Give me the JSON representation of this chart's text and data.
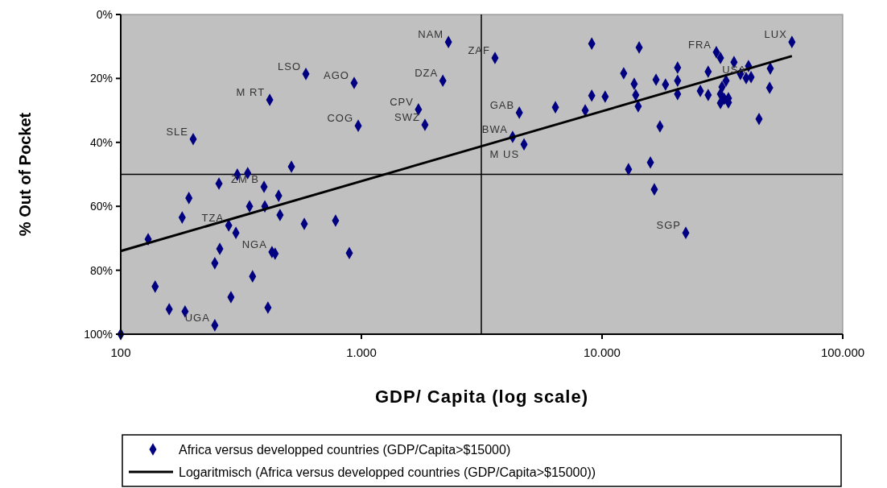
{
  "chart_data": {
    "type": "scatter",
    "xlabel": "GDP/ Capita (log scale)",
    "ylabel": "% Out of Pocket",
    "log": "x",
    "grid": false,
    "legend": "bottom",
    "marker": "diamond",
    "xlim": [
      100,
      100000
    ],
    "xticks": [
      100,
      {
        "value": 1000,
        "label": "1.000"
      },
      {
        "value": 10000,
        "label": "10.000"
      },
      {
        "value": 100000,
        "label": "100.000"
      }
    ],
    "ylim": [
      100,
      0
    ],
    "yticks": [
      {
        "value": 0,
        "label": "0%"
      },
      {
        "value": 20,
        "label": "20%"
      },
      {
        "value": 40,
        "label": "40%"
      },
      {
        "value": 60,
        "label": "60%"
      },
      {
        "value": 80,
        "label": "80%"
      },
      {
        "value": 100,
        "label": "100%"
      }
    ],
    "series": [
      {
        "name": "Africa versus developped countries (GDP/Capita>$15000)",
        "color": "#000080",
        "x": [
          2300,
          2180,
          588,
          933,
          416,
          1726,
          970,
          1837,
          200,
          512,
          3590,
          9060,
          14260,
          29840,
          31040,
          35340,
          61500,
          12300,
          20600,
          27600,
          40600,
          50000,
          13600,
          16760,
          18350,
          20600,
          37580,
          39700,
          32750,
          31500,
          41600,
          49700,
          13800,
          9060,
          10300,
          20600,
          25600,
          27600,
          31040,
          32200,
          33500,
          31040,
          33500,
          14130,
          6400,
          8510,
          4530,
          44900,
          17400,
          4250,
          4740,
          15880,
          12880,
          305,
          337,
          256,
          394,
          192,
          453,
          343,
          397,
          180,
          459,
          281,
          301,
          579,
          781,
          130,
          258,
          425,
          438,
          891,
          246,
          353,
          139,
          287,
          409,
          159,
          185,
          246,
          100,
          16490,
          22280
        ],
        "values": [
          8.6,
          20.7,
          18.6,
          21.4,
          26.7,
          29.7,
          34.8,
          34.5,
          39.0,
          47.6,
          13.6,
          9.1,
          10.3,
          11.8,
          13.6,
          14.9,
          8.6,
          18.4,
          16.6,
          17.9,
          16.1,
          16.9,
          21.7,
          20.4,
          21.9,
          20.7,
          18.6,
          19.9,
          20.7,
          22.7,
          19.6,
          22.9,
          25.2,
          25.4,
          25.7,
          24.9,
          23.9,
          25.2,
          24.9,
          26.4,
          26.2,
          27.7,
          27.5,
          28.7,
          29.0,
          30.0,
          30.7,
          32.7,
          35.0,
          38.3,
          40.6,
          46.3,
          48.4,
          50.1,
          49.6,
          52.9,
          53.9,
          57.4,
          56.7,
          60.0,
          60.0,
          63.5,
          62.7,
          66.0,
          68.3,
          65.5,
          64.5,
          70.3,
          73.3,
          74.3,
          74.8,
          74.6,
          77.8,
          81.9,
          85.1,
          88.4,
          91.7,
          92.2,
          92.9,
          97.2,
          100,
          54.7,
          68.3
        ]
      },
      {
        "name": "Logaritmisch (Africa versus developped countries (GDP/Capita>$15000))",
        "type": "line",
        "marker": "none",
        "color": "#000000",
        "line_style": "solid",
        "x": [
          100,
          61500
        ],
        "values": [
          74,
          13
        ]
      }
    ],
    "ref_lines": [
      {
        "axis": "x",
        "value": 3150,
        "color": "#000000"
      },
      {
        "axis": "y",
        "value": 50,
        "color": "#000000"
      }
    ],
    "annotations": [
      {
        "text": "NAM",
        "x": 2300,
        "y": 8.6
      },
      {
        "text": "ZAF",
        "x": 3590,
        "y": 13.6
      },
      {
        "text": "LSO",
        "x": 588,
        "y": 18.6
      },
      {
        "text": "AGO",
        "x": 933,
        "y": 21.4
      },
      {
        "text": "DZA",
        "x": 2180,
        "y": 20.7
      },
      {
        "text": "M RT",
        "x": 416,
        "y": 26.7
      },
      {
        "text": "CPV",
        "x": 1726,
        "y": 29.7
      },
      {
        "text": "COG",
        "x": 970,
        "y": 34.8
      },
      {
        "text": "SWZ",
        "x": 1837,
        "y": 34.5
      },
      {
        "text": "SLE",
        "x": 200,
        "y": 39.0
      },
      {
        "text": "GAB",
        "x": 4530,
        "y": 30.7
      },
      {
        "text": "BWA",
        "x": 4250,
        "y": 38.3
      },
      {
        "text": "M US",
        "x": 4740,
        "y": 40.6
      },
      {
        "text": "FRA",
        "x": 29840,
        "y": 11.8
      },
      {
        "text": "LUX",
        "x": 61500,
        "y": 8.6
      },
      {
        "text": "USA",
        "x": 41600,
        "y": 19.6
      },
      {
        "text": "ZM B",
        "x": 394,
        "y": 53.9
      },
      {
        "text": "TZA",
        "x": 281,
        "y": 66.0
      },
      {
        "text": "NGA",
        "x": 425,
        "y": 74.3
      },
      {
        "text": "UGA",
        "x": 246,
        "y": 97.2
      },
      {
        "text": "SGP",
        "x": 22280,
        "y": 68.3
      }
    ]
  }
}
